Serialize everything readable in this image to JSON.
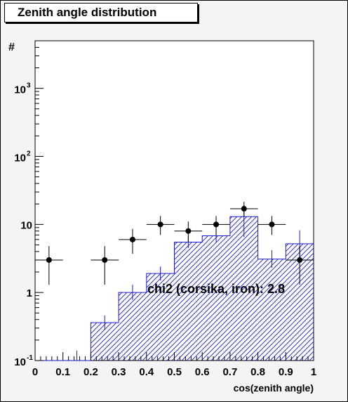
{
  "chart_data": {
    "type": "bar",
    "title": "Zenith angle distribution",
    "xlabel": "cos(zenith angle)",
    "ylabel": "#",
    "xlim": [
      0,
      1
    ],
    "ylim": [
      0.1,
      5000
    ],
    "yscale": "log",
    "grid": false,
    "x_ticks": [
      "0",
      "0.1",
      "0.2",
      "0.3",
      "0.4",
      "0.5",
      "0.6",
      "0.7",
      "0.8",
      "0.9",
      "1"
    ],
    "y_ticks": [
      {
        "value": 0.1,
        "base": "10",
        "exp": "-1"
      },
      {
        "value": 1,
        "base": "1",
        "exp": ""
      },
      {
        "value": 10,
        "base": "10",
        "exp": ""
      },
      {
        "value": 100,
        "base": "10",
        "exp": "2"
      },
      {
        "value": 1000,
        "base": "10",
        "exp": "3"
      }
    ],
    "simulation_histogram": {
      "bin_edges": [
        0,
        0.1,
        0.2,
        0.3,
        0.4,
        0.5,
        0.6,
        0.7,
        0.8,
        0.9,
        1.0
      ],
      "values": [
        0.1,
        0.1,
        0.36,
        1.0,
        1.9,
        5.5,
        6.8,
        13,
        3.1,
        5.2
      ],
      "errors": [
        [
          0.1,
          0.1
        ],
        [
          0.1,
          0.14
        ],
        [
          0.28,
          0.46
        ],
        [
          0.78,
          1.3
        ],
        [
          1.5,
          2.4
        ],
        [
          4.5,
          6.8
        ],
        [
          5.5,
          8.3
        ],
        [
          6.5,
          19
        ],
        [
          2.3,
          4.2
        ],
        [
          3.2,
          8.2
        ]
      ],
      "color": "#1a1acd"
    },
    "data_points": {
      "x": [
        0.05,
        0.25,
        0.35,
        0.45,
        0.55,
        0.65,
        0.75,
        0.85,
        0.95
      ],
      "y": [
        3,
        3,
        6,
        10,
        8,
        10,
        17,
        10,
        3
      ],
      "yerr": [
        [
          1.3,
          4.8
        ],
        [
          1.3,
          4.8
        ],
        [
          3.7,
          8.6
        ],
        [
          7.0,
          13.3
        ],
        [
          5.5,
          11.0
        ],
        [
          7.0,
          13.3
        ],
        [
          13.0,
          21.5
        ],
        [
          7.0,
          13.3
        ],
        [
          1.3,
          4.8
        ]
      ],
      "color": "#000000"
    },
    "annotation": "chi2 (corsika, iron): 2.8"
  }
}
